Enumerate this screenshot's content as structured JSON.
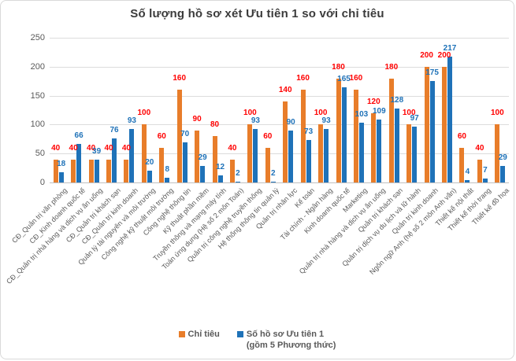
{
  "title": "Số lượng hồ sơ xét Ưu tiên 1 so với chỉ tiêu",
  "chart_data": {
    "type": "bar",
    "title": "Số lượng hồ sơ xét Ưu tiên 1 so với chỉ tiêu",
    "xlabel": "",
    "ylabel": "",
    "ylim": [
      0,
      250
    ],
    "yticks": [
      0,
      50,
      100,
      150,
      200,
      250
    ],
    "grid": true,
    "legend_position": "bottom",
    "categories": [
      "CĐ_Quản trị văn phòng",
      "CĐ_Kinh doanh quốc tế",
      "CĐ_Quản trị nhà hàng và dịch vụ ăn uống",
      "CĐ_Quản trị khách sạn",
      "CĐ_Quản trị kinh doanh",
      "Quản lý tài nguyên và môi trường",
      "Công nghệ kỹ thuật môi trường",
      "Công nghệ thông tin",
      "Kỹ thuật phần mềm",
      "Truyền thông và mạng máy tính",
      "Toán ứng dụng (Hệ số 2 môn Toán)",
      "Quản trị công nghệ truyền thông",
      "Hệ thống thông tin quản lý",
      "Quản trị nhân lực",
      "Kế toán",
      "Tài chính - Ngân hàng",
      "Kinh doanh quốc tế",
      "Marketing",
      "Quản trị nhà hàng và dịch vụ ăn uống",
      "Quản trị khách sạn",
      "Quản trị dịch vụ du lịch và lữ hành",
      "Quản trị kinh doanh",
      "Ngôn ngữ Anh (hệ số 2 môn Anh văn)",
      "Thiết kế nội thất",
      "Thiết kế thời trang",
      "Thiết kế đồ họa"
    ],
    "series": [
      {
        "name": "Chỉ tiêu",
        "color": "#e87d2a",
        "label_color": "#ff0000",
        "values": [
          40,
          40,
          40,
          40,
          40,
          100,
          60,
          160,
          90,
          80,
          40,
          100,
          60,
          140,
          160,
          100,
          180,
          160,
          120,
          180,
          100,
          200,
          200,
          60,
          40,
          100
        ]
      },
      {
        "name": "Số hồ sơ Ưu tiên 1 (gồm 5 Phương thức)",
        "color": "#1f72b8",
        "label_color": "#1f72b8",
        "values": [
          18,
          66,
          39,
          76,
          93,
          20,
          8,
          70,
          29,
          12,
          2,
          93,
          2,
          90,
          73,
          93,
          165,
          103,
          109,
          128,
          97,
          175,
          217,
          4,
          7,
          29
        ]
      }
    ]
  },
  "legend": {
    "series1_label": "Chỉ tiêu",
    "series2_line1": "Số hồ sơ Ưu tiên 1",
    "series2_line2": "(gồm 5 Phương thức)"
  },
  "colors": {
    "chi_tieu_bar": "#e87d2a",
    "uu_tien_bar": "#1f72b8",
    "chi_tieu_label": "#ff0000",
    "uu_tien_label": "#1f72b8",
    "gridline": "#dcdcdc",
    "axis_text": "#595959",
    "title_text": "#3b3b3b"
  }
}
